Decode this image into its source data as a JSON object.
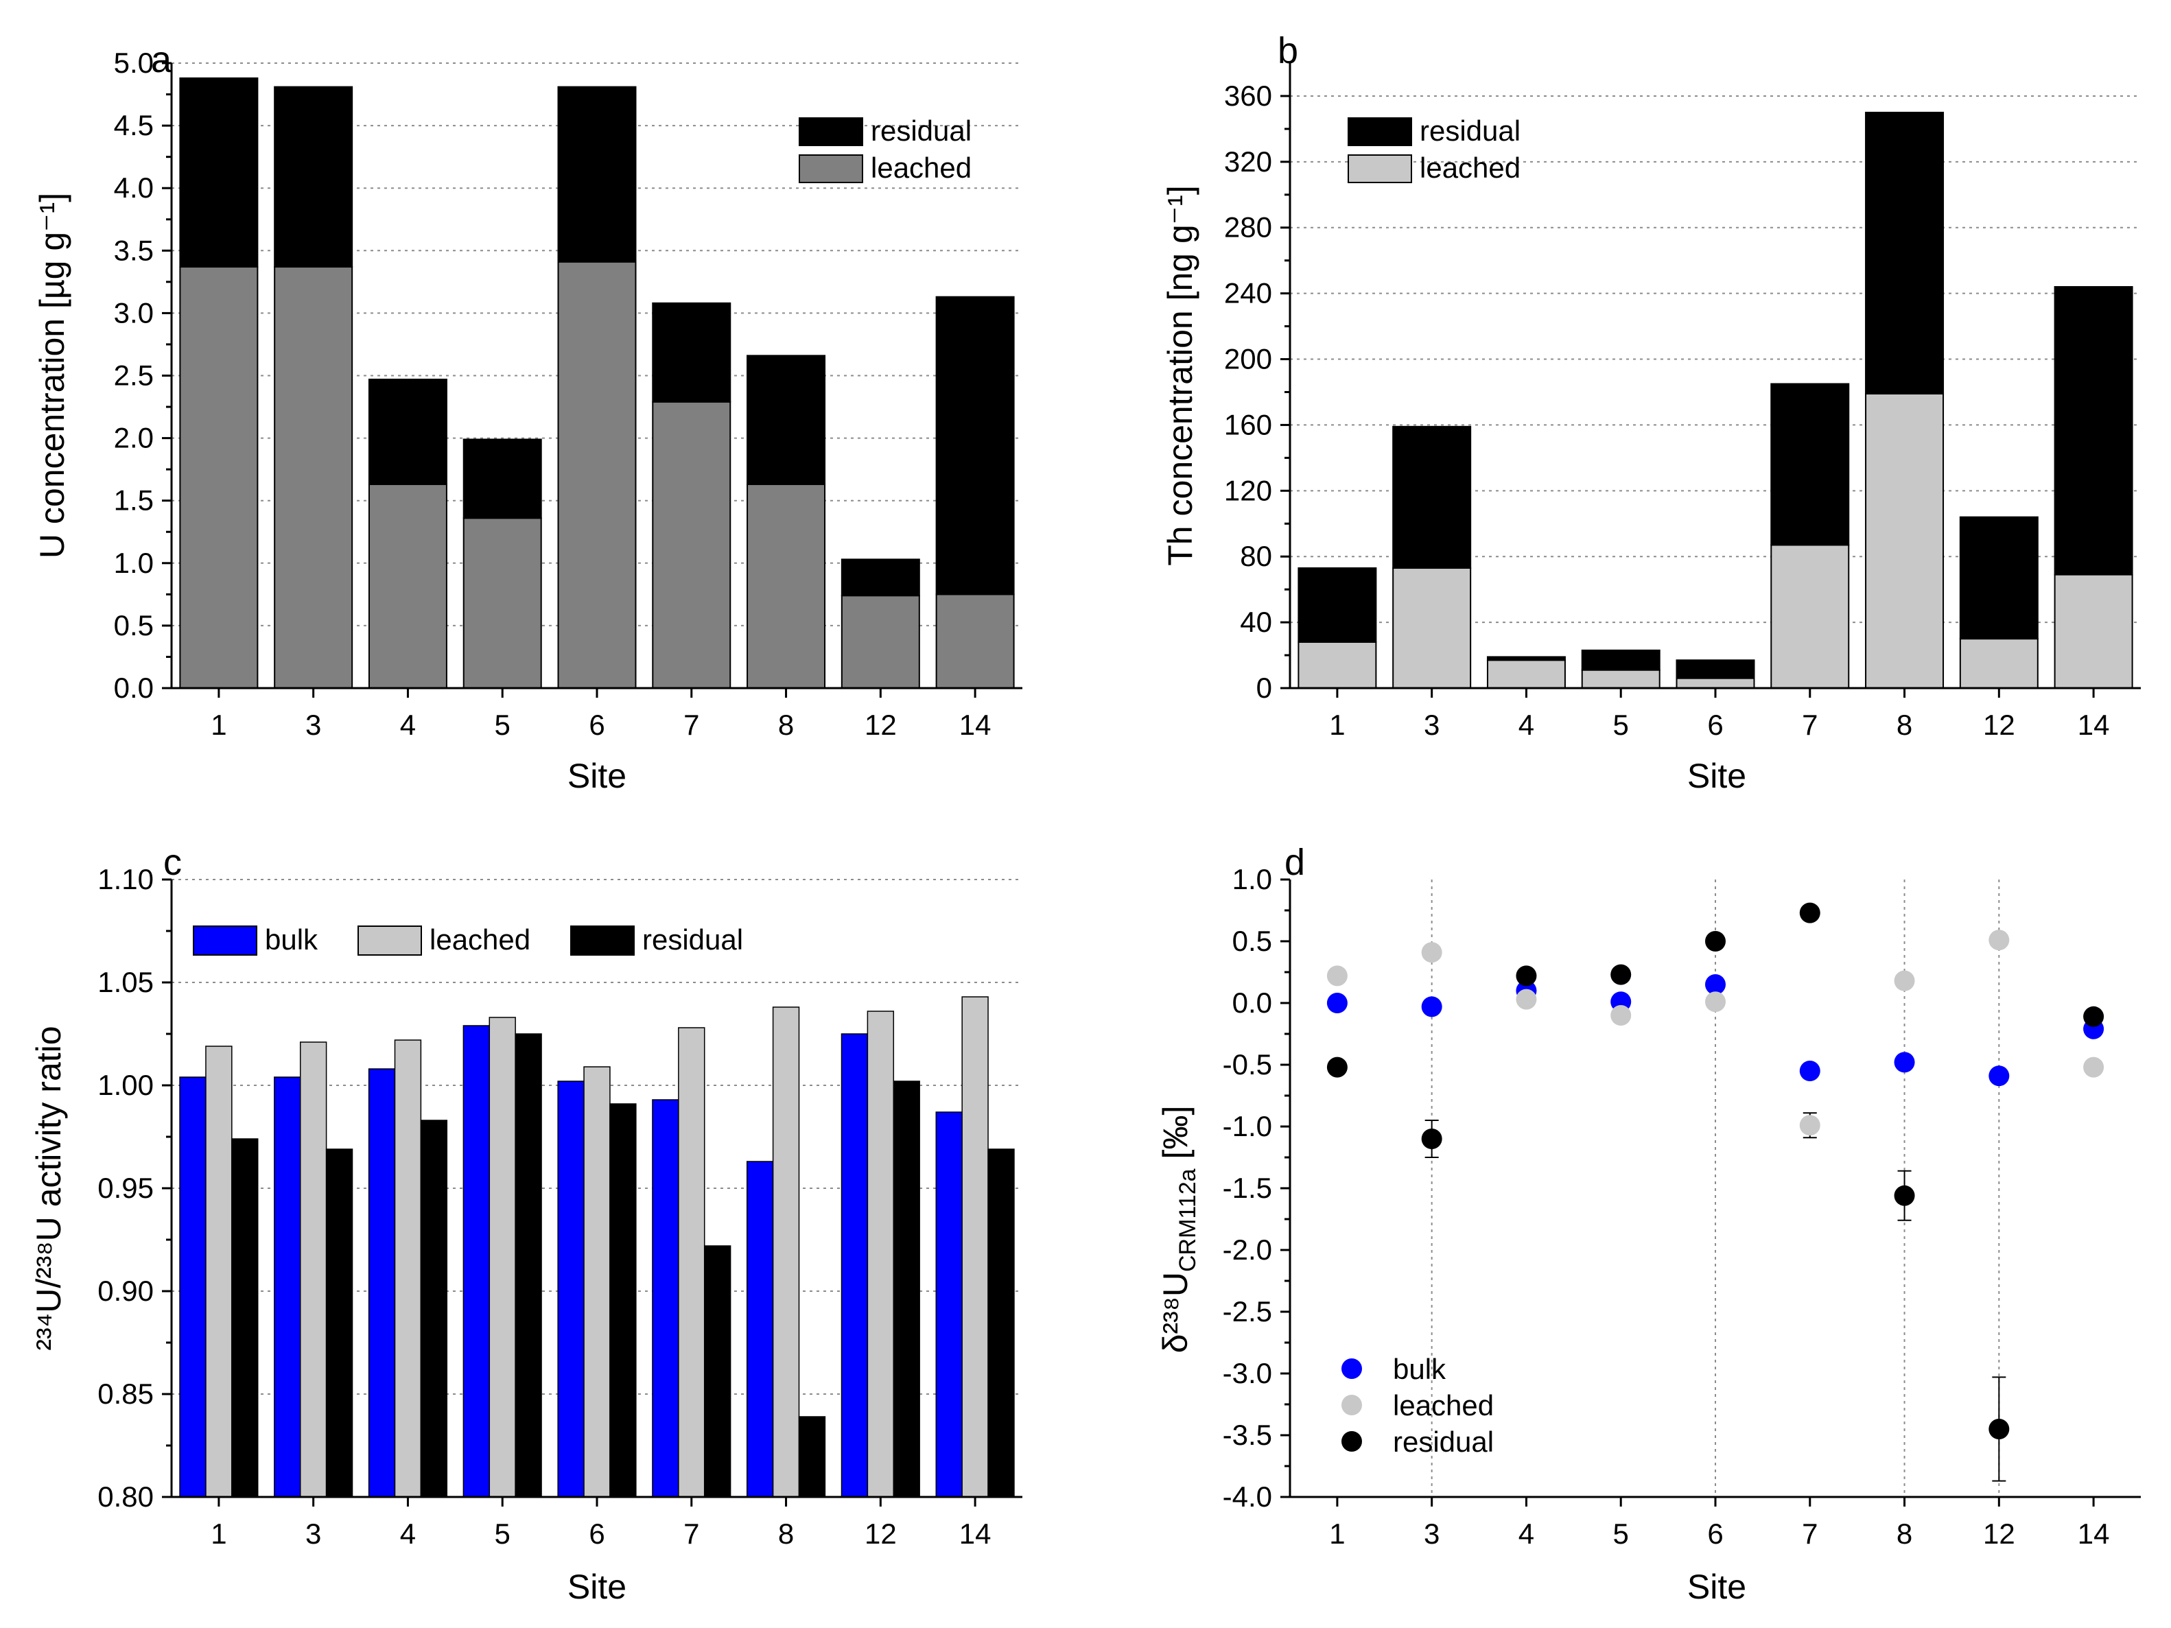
{
  "figure": {
    "sites": [
      "1",
      "3",
      "4",
      "5",
      "6",
      "7",
      "8",
      "12",
      "14"
    ],
    "colors": {
      "black": "#000000",
      "dark_gray": "#808080",
      "light_gray": "#c8c8c8",
      "blue": "#0000ff",
      "grid": "#8c8c8c"
    }
  },
  "chart_data": [
    {
      "panel": "a",
      "type": "bar",
      "stacked": true,
      "xlabel": "Site",
      "ylabel": "U concentration [µg g⁻¹]",
      "ylim": [
        0,
        5.0
      ],
      "yticks": [
        "0.0",
        "0.5",
        "1.0",
        "1.5",
        "2.0",
        "2.5",
        "3.0",
        "3.5",
        "4.0",
        "4.5",
        "5.0"
      ],
      "categories": [
        "1",
        "3",
        "4",
        "5",
        "6",
        "7",
        "8",
        "12",
        "14"
      ],
      "legend": [
        "residual",
        "leached"
      ],
      "series": [
        {
          "name": "leached",
          "color": "#808080",
          "values": [
            3.37,
            3.37,
            1.63,
            1.36,
            3.41,
            2.29,
            1.63,
            0.74,
            0.75
          ]
        },
        {
          "name": "residual",
          "color": "#000000",
          "values": [
            1.51,
            1.44,
            0.84,
            0.63,
            1.4,
            0.79,
            1.03,
            0.29,
            2.38
          ]
        }
      ]
    },
    {
      "panel": "b",
      "type": "bar",
      "stacked": true,
      "xlabel": "Site",
      "ylabel": "Th concentration [ng g⁻¹]",
      "ylim": [
        0,
        380
      ],
      "yticks": [
        "0",
        "40",
        "80",
        "120",
        "160",
        "200",
        "240",
        "280",
        "320",
        "360"
      ],
      "categories": [
        "1",
        "3",
        "4",
        "5",
        "6",
        "7",
        "8",
        "12",
        "14"
      ],
      "legend": [
        "residual",
        "leached"
      ],
      "series": [
        {
          "name": "leached",
          "color": "#c8c8c8",
          "values": [
            28,
            73,
            17,
            11,
            6,
            87,
            179,
            30,
            69
          ]
        },
        {
          "name": "residual",
          "color": "#000000",
          "values": [
            45,
            86,
            2,
            12,
            11,
            98,
            171,
            74,
            175
          ]
        }
      ]
    },
    {
      "panel": "c",
      "type": "bar",
      "stacked": false,
      "xlabel": "Site",
      "ylabel": "²³⁴U/²³⁸U activity ratio",
      "ylim": [
        0.8,
        1.1
      ],
      "yticks": [
        "0.80",
        "0.85",
        "0.90",
        "0.95",
        "1.00",
        "1.05",
        "1.10"
      ],
      "categories": [
        "1",
        "3",
        "4",
        "5",
        "6",
        "7",
        "8",
        "12",
        "14"
      ],
      "legend": [
        "bulk",
        "leached",
        "residual"
      ],
      "series": [
        {
          "name": "bulk",
          "color": "#0000ff",
          "values": [
            1.004,
            1.004,
            1.008,
            1.029,
            1.002,
            0.993,
            0.963,
            1.025,
            0.987
          ]
        },
        {
          "name": "leached",
          "color": "#c8c8c8",
          "values": [
            1.019,
            1.021,
            1.022,
            1.033,
            1.009,
            1.028,
            1.038,
            1.036,
            1.043
          ]
        },
        {
          "name": "residual",
          "color": "#000000",
          "values": [
            0.974,
            0.969,
            0.983,
            1.025,
            0.991,
            0.922,
            0.839,
            1.002,
            0.969
          ]
        }
      ]
    },
    {
      "panel": "d",
      "type": "scatter",
      "xlabel": "Site",
      "ylabel": "δ²³⁸U",
      "ylabel_sub": "CRM112a",
      "ylabel_unit": "[‰]",
      "ylim": [
        -4.0,
        1.0
      ],
      "yticks": [
        "-4.0",
        "-3.5",
        "-3.0",
        "-2.5",
        "-2.0",
        "-1.5",
        "-1.0",
        "-0.5",
        "0.0",
        "0.5",
        "1.0"
      ],
      "categories": [
        "1",
        "3",
        "4",
        "5",
        "6",
        "7",
        "8",
        "12",
        "14"
      ],
      "vlines_at": [
        "3",
        "6",
        "8",
        "12"
      ],
      "legend": [
        "bulk",
        "leached",
        "residual"
      ],
      "series": [
        {
          "name": "bulk",
          "color": "#0000ff",
          "values": [
            0.0,
            -0.03,
            0.1,
            0.01,
            0.15,
            -0.55,
            -0.48,
            -0.59,
            -0.21
          ],
          "errors": [
            0,
            0,
            0,
            0,
            0,
            0,
            0,
            0,
            0
          ]
        },
        {
          "name": "leached",
          "color": "#c8c8c8",
          "values": [
            0.22,
            0.41,
            0.03,
            -0.1,
            0.01,
            -0.99,
            0.18,
            0.51,
            -0.52
          ],
          "errors": [
            0,
            0,
            0,
            0,
            0,
            0.1,
            0,
            0,
            0
          ]
        },
        {
          "name": "residual",
          "color": "#000000",
          "values": [
            -0.52,
            -1.1,
            0.22,
            0.23,
            0.5,
            0.73,
            -1.56,
            -3.45,
            -0.11
          ],
          "errors": [
            0,
            0.15,
            0,
            0,
            0,
            0,
            0.2,
            0.42,
            0
          ]
        }
      ]
    }
  ]
}
